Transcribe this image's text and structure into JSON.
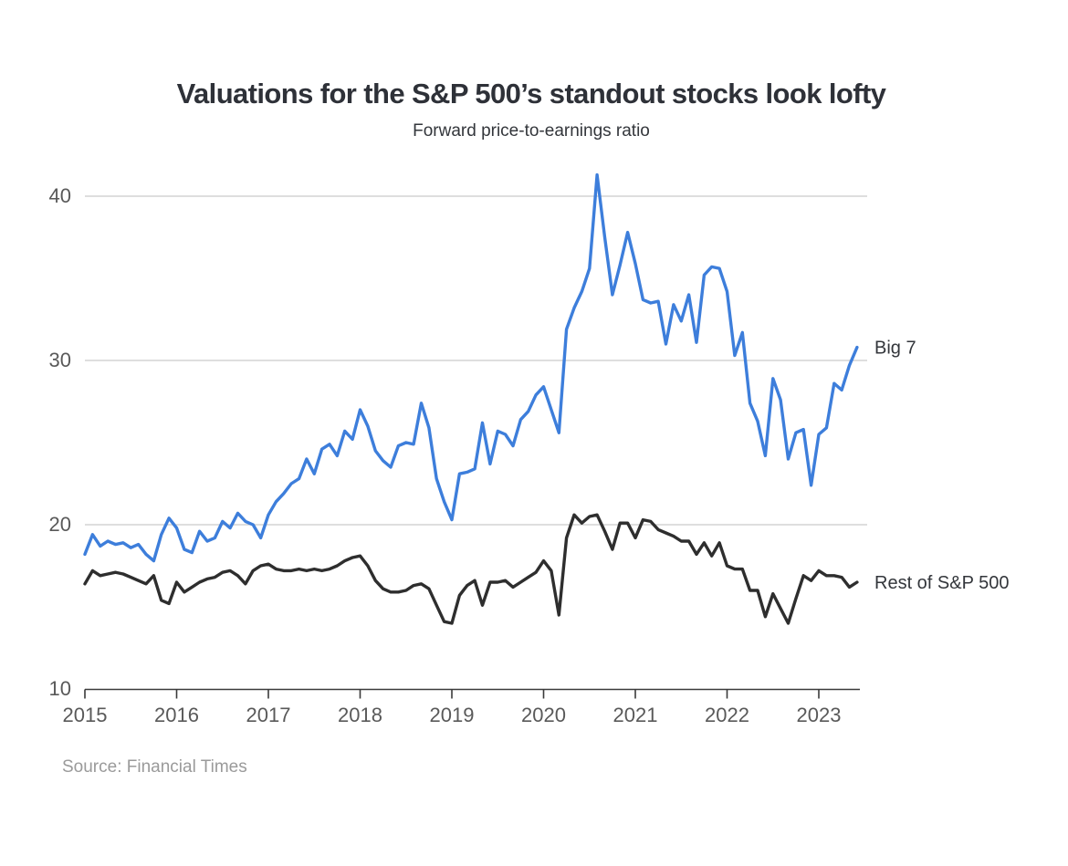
{
  "page": {
    "background": "#ffffff"
  },
  "header": {
    "title": "Valuations for the S&P 500’s standout stocks look lofty",
    "subtitle": "Forward price-to-earnings ratio"
  },
  "source": {
    "label": "Source: Financial Times"
  },
  "chart_data": {
    "type": "line",
    "title": "Valuations for the S&P 500’s standout stocks look lofty",
    "subtitle": "Forward price-to-earnings ratio",
    "x_start_year": 2015,
    "x_frequency": "monthly",
    "x_axis": {
      "tick_labels": [
        "2015",
        "2016",
        "2017",
        "2018",
        "2019",
        "2020",
        "2021",
        "2022",
        "2023"
      ],
      "range": [
        2015,
        2023.45
      ]
    },
    "y_axis": {
      "tick_labels": [
        "10",
        "20",
        "30",
        "40"
      ],
      "ticks": [
        10,
        20,
        30,
        40
      ],
      "gridlines": [
        20,
        30,
        40
      ],
      "range": [
        10,
        41.5
      ]
    },
    "grid": "horizontal-only",
    "legend_position": "right-of-line-ends",
    "colors": {
      "big7": "#3d7edb",
      "rest": "#2e2e2e",
      "gridline": "#c9c9c9",
      "axis": "#3a3a3a",
      "tick_text": "#595959"
    },
    "series": [
      {
        "name": "Big 7",
        "color": "#3d7edb",
        "values": [
          18.2,
          19.4,
          18.7,
          19.0,
          18.8,
          18.9,
          18.6,
          18.8,
          18.2,
          17.8,
          19.4,
          20.4,
          19.8,
          18.5,
          18.3,
          19.6,
          19.0,
          19.2,
          20.2,
          19.8,
          20.7,
          20.2,
          20.0,
          19.2,
          20.6,
          21.4,
          21.9,
          22.5,
          22.8,
          24.0,
          23.1,
          24.6,
          24.9,
          24.2,
          25.7,
          25.2,
          27.0,
          26.0,
          24.5,
          23.9,
          23.5,
          24.8,
          25.0,
          24.9,
          27.4,
          25.9,
          22.8,
          21.4,
          20.3,
          23.1,
          23.2,
          23.4,
          26.2,
          23.7,
          25.7,
          25.5,
          24.8,
          26.4,
          26.9,
          27.9,
          28.4,
          27.0,
          25.6,
          31.9,
          33.2,
          34.2,
          35.6,
          41.3,
          37.5,
          34.0,
          35.8,
          37.8,
          35.9,
          33.7,
          33.5,
          33.6,
          31.0,
          33.4,
          32.4,
          34.0,
          31.1,
          35.2,
          35.7,
          35.6,
          34.2,
          30.3,
          31.7,
          27.4,
          26.3,
          24.2,
          28.9,
          27.6,
          24.0,
          25.6,
          25.8,
          22.4,
          25.5,
          25.9,
          28.6,
          28.2,
          29.7,
          30.8
        ]
      },
      {
        "name": "Rest of S&P 500",
        "color": "#2e2e2e",
        "values": [
          16.4,
          17.2,
          16.9,
          17.0,
          17.1,
          17.0,
          16.8,
          16.6,
          16.4,
          16.9,
          15.4,
          15.2,
          16.5,
          15.9,
          16.2,
          16.5,
          16.7,
          16.8,
          17.1,
          17.2,
          16.9,
          16.4,
          17.2,
          17.5,
          17.6,
          17.3,
          17.2,
          17.2,
          17.3,
          17.2,
          17.3,
          17.2,
          17.3,
          17.5,
          17.8,
          18.0,
          18.1,
          17.5,
          16.6,
          16.1,
          15.9,
          15.9,
          16.0,
          16.3,
          16.4,
          16.1,
          15.1,
          14.1,
          14.0,
          15.7,
          16.3,
          16.6,
          15.1,
          16.5,
          16.5,
          16.6,
          16.2,
          16.5,
          16.8,
          17.1,
          17.8,
          17.2,
          14.5,
          19.2,
          20.6,
          20.1,
          20.5,
          20.6,
          19.6,
          18.5,
          20.1,
          20.1,
          19.2,
          20.3,
          20.2,
          19.7,
          19.5,
          19.3,
          19.0,
          19.0,
          18.2,
          18.9,
          18.1,
          18.9,
          17.5,
          17.3,
          17.3,
          16.0,
          16.0,
          14.4,
          15.8,
          14.9,
          14.0,
          15.5,
          16.9,
          16.6,
          17.2,
          16.9,
          16.9,
          16.8,
          16.2,
          16.5
        ]
      }
    ]
  }
}
